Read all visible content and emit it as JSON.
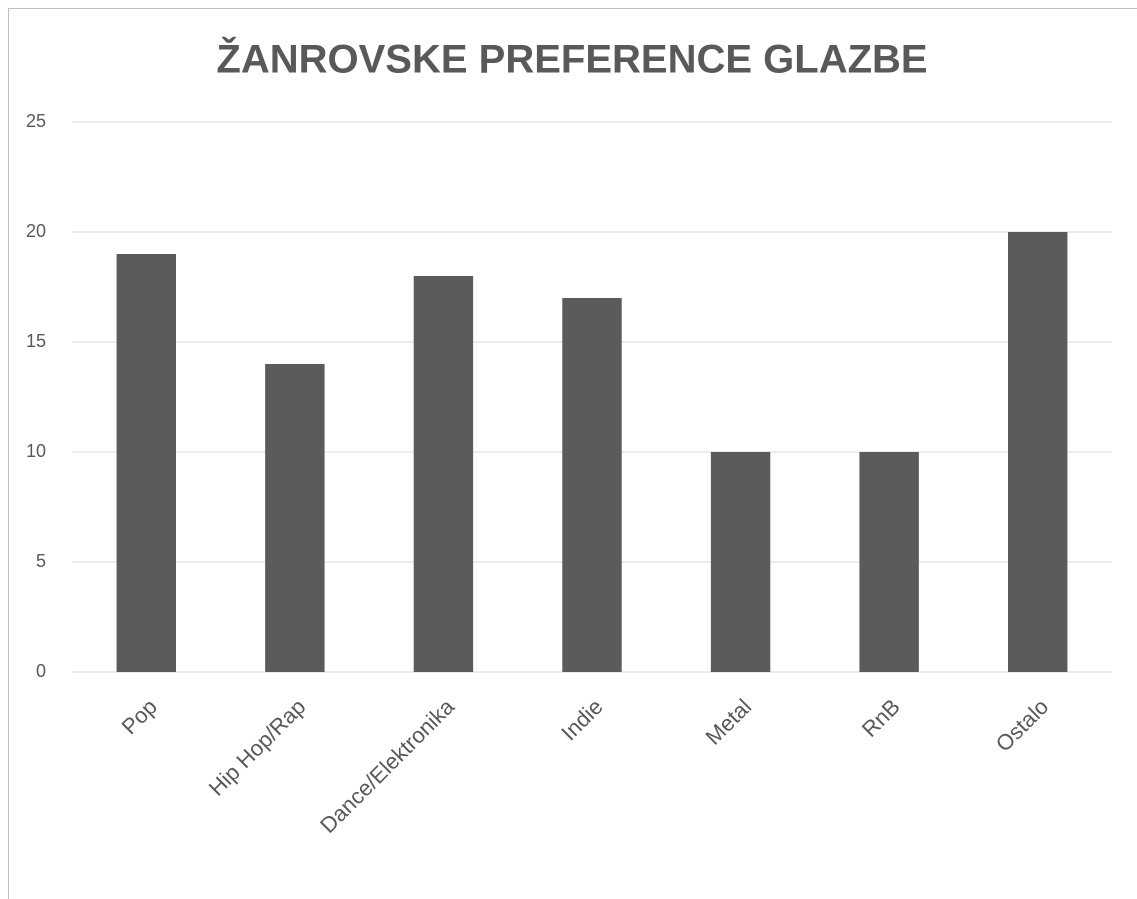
{
  "chart_data": {
    "type": "bar",
    "title": "ŽANROVSKE PREFERENCE GLAZBE",
    "categories": [
      "Pop",
      "Hip Hop/Rap",
      "Dance/Elektronika",
      "Indie",
      "Metal",
      "RnB",
      "Ostalo"
    ],
    "values": [
      19,
      14,
      18,
      17,
      10,
      10,
      20
    ],
    "color": "#5b5b5b",
    "ylim": [
      0,
      25
    ],
    "yticks": [
      0,
      5,
      10,
      15,
      20,
      25
    ],
    "grid": true
  }
}
